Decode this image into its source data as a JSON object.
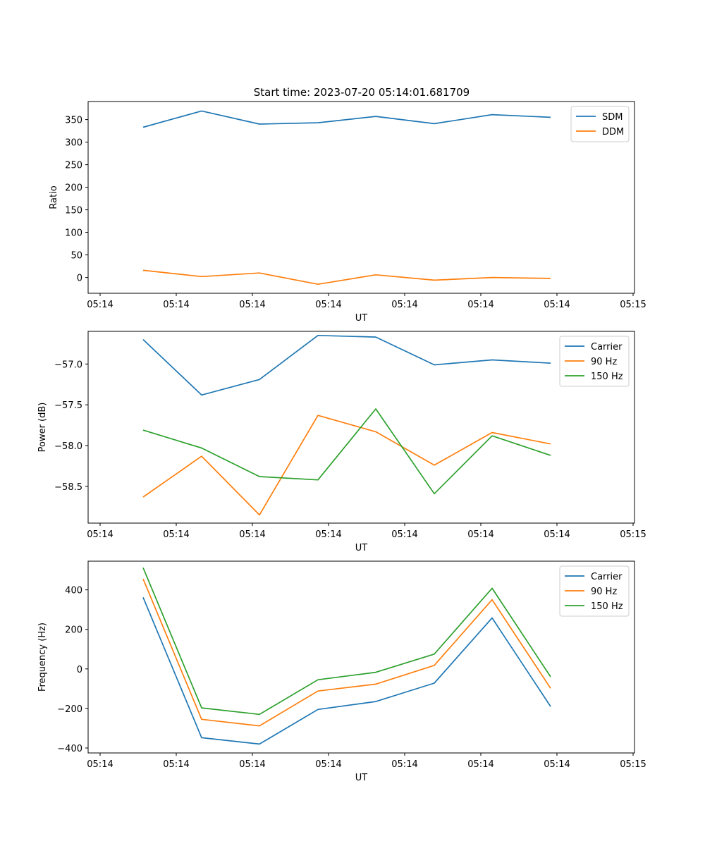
{
  "figure": {
    "title": "Start time: 2023-07-20 05:14:01.681709"
  },
  "chart_data": [
    {
      "type": "line",
      "xlabel": "UT",
      "ylabel": "Ratio",
      "xticks": [
        "05:14",
        "05:14",
        "05:14",
        "05:14",
        "05:14",
        "05:14",
        "05:14"
      ],
      "xticks_end": "05:15",
      "xlim": [
        -0.2,
        9
      ],
      "ylim": [
        -35,
        390
      ],
      "yticks": [
        0,
        50,
        100,
        150,
        200,
        250,
        300,
        350
      ],
      "ytick_labels": [
        "0",
        "50",
        "100",
        "150",
        "200",
        "250",
        "300",
        "350"
      ],
      "legend_position": "top-right",
      "series": [
        {
          "name": "SDM",
          "color": "#1f77b4",
          "values": [
            333,
            369,
            340,
            343,
            357,
            341,
            361,
            355
          ]
        },
        {
          "name": "DDM",
          "color": "#ff7f0e",
          "values": [
            16,
            2,
            10,
            -15,
            6,
            -6,
            0,
            -2
          ]
        }
      ]
    },
    {
      "type": "line",
      "xlabel": "UT",
      "ylabel": "Power (dB)",
      "xticks": [
        "05:14",
        "05:14",
        "05:14",
        "05:14",
        "05:14",
        "05:14",
        "05:14"
      ],
      "xticks_end": "05:15",
      "xlim": [
        -0.2,
        9
      ],
      "ylim": [
        -58.95,
        -56.6
      ],
      "yticks": [
        -58.5,
        -58.0,
        -57.5,
        -57.0
      ],
      "ytick_labels": [
        "−58.5",
        "−58.0",
        "−57.5",
        "−57.0"
      ],
      "legend_position": "top-right",
      "series": [
        {
          "name": "Carrier",
          "color": "#1f77b4",
          "values": [
            -56.7,
            -57.38,
            -57.19,
            -56.65,
            -56.67,
            -57.01,
            -56.95,
            -56.99
          ]
        },
        {
          "name": "90 Hz",
          "color": "#ff7f0e",
          "values": [
            -58.63,
            -58.13,
            -58.85,
            -57.63,
            -57.83,
            -58.24,
            -57.84,
            -57.98
          ]
        },
        {
          "name": "150 Hz",
          "color": "#2ca02c",
          "values": [
            -57.81,
            -58.03,
            -58.38,
            -58.42,
            -57.55,
            -58.59,
            -57.88,
            -58.12
          ]
        }
      ]
    },
    {
      "type": "line",
      "xlabel": "UT",
      "ylabel": "Frequency (Hz)",
      "xticks": [
        "05:14",
        "05:14",
        "05:14",
        "05:14",
        "05:14",
        "05:14",
        "05:14"
      ],
      "xticks_end": "05:15",
      "xlim": [
        -0.2,
        9
      ],
      "ylim": [
        -425,
        545
      ],
      "yticks": [
        -400,
        -200,
        0,
        200,
        400
      ],
      "ytick_labels": [
        "−400",
        "−200",
        "0",
        "200",
        "400"
      ],
      "legend_position": "top-right",
      "series": [
        {
          "name": "Carrier",
          "color": "#1f77b4",
          "values": [
            362,
            -348,
            -380,
            -205,
            -165,
            -72,
            258,
            -190
          ]
        },
        {
          "name": "90 Hz",
          "color": "#ff7f0e",
          "values": [
            455,
            -255,
            -288,
            -112,
            -77,
            18,
            350,
            -98
          ]
        },
        {
          "name": "150 Hz",
          "color": "#2ca02c",
          "values": [
            512,
            -197,
            -230,
            -55,
            -17,
            75,
            408,
            -40
          ]
        }
      ]
    }
  ]
}
